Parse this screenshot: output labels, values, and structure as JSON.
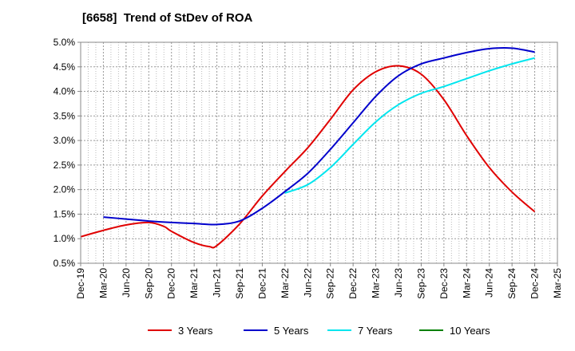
{
  "chart_data": {
    "type": "line",
    "title": "[6658]  Trend of StDev of ROA",
    "xlabel": "",
    "ylabel": "",
    "ylim": [
      0.5,
      5.0
    ],
    "y_ticks": [
      "0.5%",
      "1.0%",
      "1.5%",
      "2.0%",
      "2.5%",
      "3.0%",
      "3.5%",
      "4.0%",
      "4.5%",
      "5.0%"
    ],
    "x_ticks": [
      "Dec-19",
      "Mar-20",
      "Jun-20",
      "Sep-20",
      "Dec-20",
      "Mar-21",
      "Jun-21",
      "Sep-21",
      "Dec-21",
      "Mar-22",
      "Jun-22",
      "Sep-22",
      "Dec-22",
      "Mar-23",
      "Jun-23",
      "Sep-23",
      "Dec-23",
      "Mar-24",
      "Jun-24",
      "Sep-24",
      "Dec-24",
      "Mar-25"
    ],
    "grid": true,
    "legend_position": "bottom",
    "series": [
      {
        "name": "3 Years",
        "color": "#e00000",
        "points": [
          [
            "Dec-19",
            1.04
          ],
          [
            "Mar-20",
            1.17
          ],
          [
            "Jun-20",
            1.28
          ],
          [
            "Sep-20",
            1.33
          ],
          [
            "Nov-20",
            1.25
          ],
          [
            "Dec-20",
            1.15
          ],
          [
            "Mar-21",
            0.92
          ],
          [
            "May-21",
            0.84
          ],
          [
            "Jun-21",
            0.86
          ],
          [
            "Sep-21",
            1.3
          ],
          [
            "Dec-21",
            1.87
          ],
          [
            "Mar-22",
            2.37
          ],
          [
            "Jun-22",
            2.85
          ],
          [
            "Sep-22",
            3.43
          ],
          [
            "Dec-22",
            4.03
          ],
          [
            "Mar-23",
            4.4
          ],
          [
            "Jun-23",
            4.52
          ],
          [
            "Sep-23",
            4.35
          ],
          [
            "Dec-23",
            3.83
          ],
          [
            "Mar-24",
            3.1
          ],
          [
            "Jun-24",
            2.45
          ],
          [
            "Sep-24",
            1.95
          ],
          [
            "Dec-24",
            1.55
          ]
        ]
      },
      {
        "name": "5 Years",
        "color": "#0000cc",
        "points": [
          [
            "Mar-20",
            1.44
          ],
          [
            "Jun-20",
            1.4
          ],
          [
            "Sep-20",
            1.36
          ],
          [
            "Dec-20",
            1.33
          ],
          [
            "Mar-21",
            1.31
          ],
          [
            "Jun-21",
            1.29
          ],
          [
            "Sep-21",
            1.36
          ],
          [
            "Dec-21",
            1.62
          ],
          [
            "Mar-22",
            1.96
          ],
          [
            "Jun-22",
            2.33
          ],
          [
            "Sep-22",
            2.82
          ],
          [
            "Dec-22",
            3.36
          ],
          [
            "Mar-23",
            3.9
          ],
          [
            "Jun-23",
            4.32
          ],
          [
            "Sep-23",
            4.56
          ],
          [
            "Dec-23",
            4.68
          ],
          [
            "Mar-24",
            4.79
          ],
          [
            "Jun-24",
            4.87
          ],
          [
            "Sep-24",
            4.88
          ],
          [
            "Dec-24",
            4.8
          ]
        ]
      },
      {
        "name": "7 Years",
        "color": "#00e5ee",
        "points": [
          [
            "Mar-22",
            1.93
          ],
          [
            "Jun-22",
            2.1
          ],
          [
            "Sep-22",
            2.45
          ],
          [
            "Dec-22",
            2.92
          ],
          [
            "Mar-23",
            3.38
          ],
          [
            "Jun-23",
            3.73
          ],
          [
            "Sep-23",
            3.96
          ],
          [
            "Dec-23",
            4.1
          ],
          [
            "Mar-24",
            4.26
          ],
          [
            "Jun-24",
            4.42
          ],
          [
            "Sep-24",
            4.56
          ],
          [
            "Dec-24",
            4.68
          ]
        ]
      },
      {
        "name": "10 Years",
        "color": "#008000",
        "points": []
      }
    ]
  }
}
